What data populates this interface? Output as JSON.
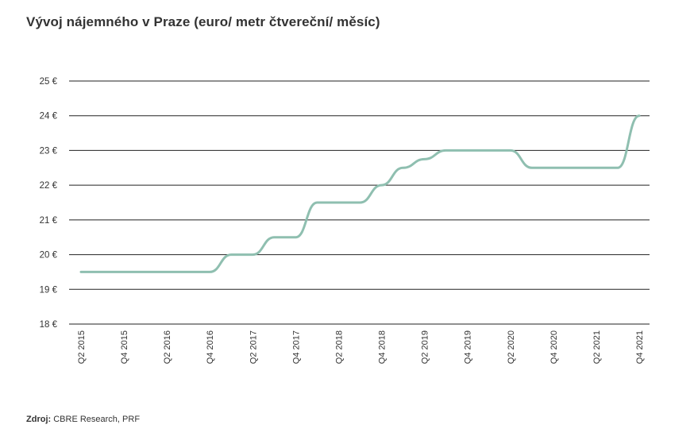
{
  "title": "Vývoj nájemného v Praze (euro/ metr čtvereční/ měsíc)",
  "source": {
    "label": "Zdroj:",
    "text": " CBRE Research, PRF"
  },
  "colors": {
    "line": "#8fbfb0",
    "grid": "#222222",
    "text": "#333333"
  },
  "chart_data": {
    "type": "line",
    "title": "Vývoj nájemného v Praze (euro/ metr čtvereční/ měsíc)",
    "ylim": [
      18,
      25
    ],
    "y_ticks": [
      18,
      19,
      20,
      21,
      22,
      23,
      24,
      25
    ],
    "y_tick_labels": [
      "18 €",
      "19 €",
      "20 €",
      "21 €",
      "22 €",
      "23 €",
      "24 €",
      "25 €"
    ],
    "x_tick_labels": [
      "Q2 2015",
      "Q4 2015",
      "Q2 2016",
      "Q4 2016",
      "Q2 2017",
      "Q4 2017",
      "Q2 2018",
      "Q4 2018",
      "Q2 2019",
      "Q4 2019",
      "Q2 2020",
      "Q4 2020",
      "Q2 2021",
      "Q4 2021"
    ],
    "x": [
      "Q2 2015",
      "Q3 2015",
      "Q4 2015",
      "Q1 2016",
      "Q2 2016",
      "Q3 2016",
      "Q4 2016",
      "Q1 2017",
      "Q2 2017",
      "Q3 2017",
      "Q4 2017",
      "Q1 2018",
      "Q2 2018",
      "Q3 2018",
      "Q4 2018",
      "Q1 2019",
      "Q2 2019",
      "Q3 2019",
      "Q4 2019",
      "Q1 2020",
      "Q2 2020",
      "Q3 2020",
      "Q4 2020",
      "Q1 2021",
      "Q2 2021",
      "Q3 2021",
      "Q4 2021"
    ],
    "series": [
      {
        "values": [
          19.5,
          19.5,
          19.5,
          19.5,
          19.5,
          19.5,
          19.5,
          20.0,
          20.0,
          20.5,
          20.5,
          21.5,
          21.5,
          21.5,
          22.0,
          22.5,
          22.75,
          23.0,
          23.0,
          23.0,
          23.0,
          22.5,
          22.5,
          22.5,
          22.5,
          22.5,
          24.0
        ]
      }
    ]
  }
}
